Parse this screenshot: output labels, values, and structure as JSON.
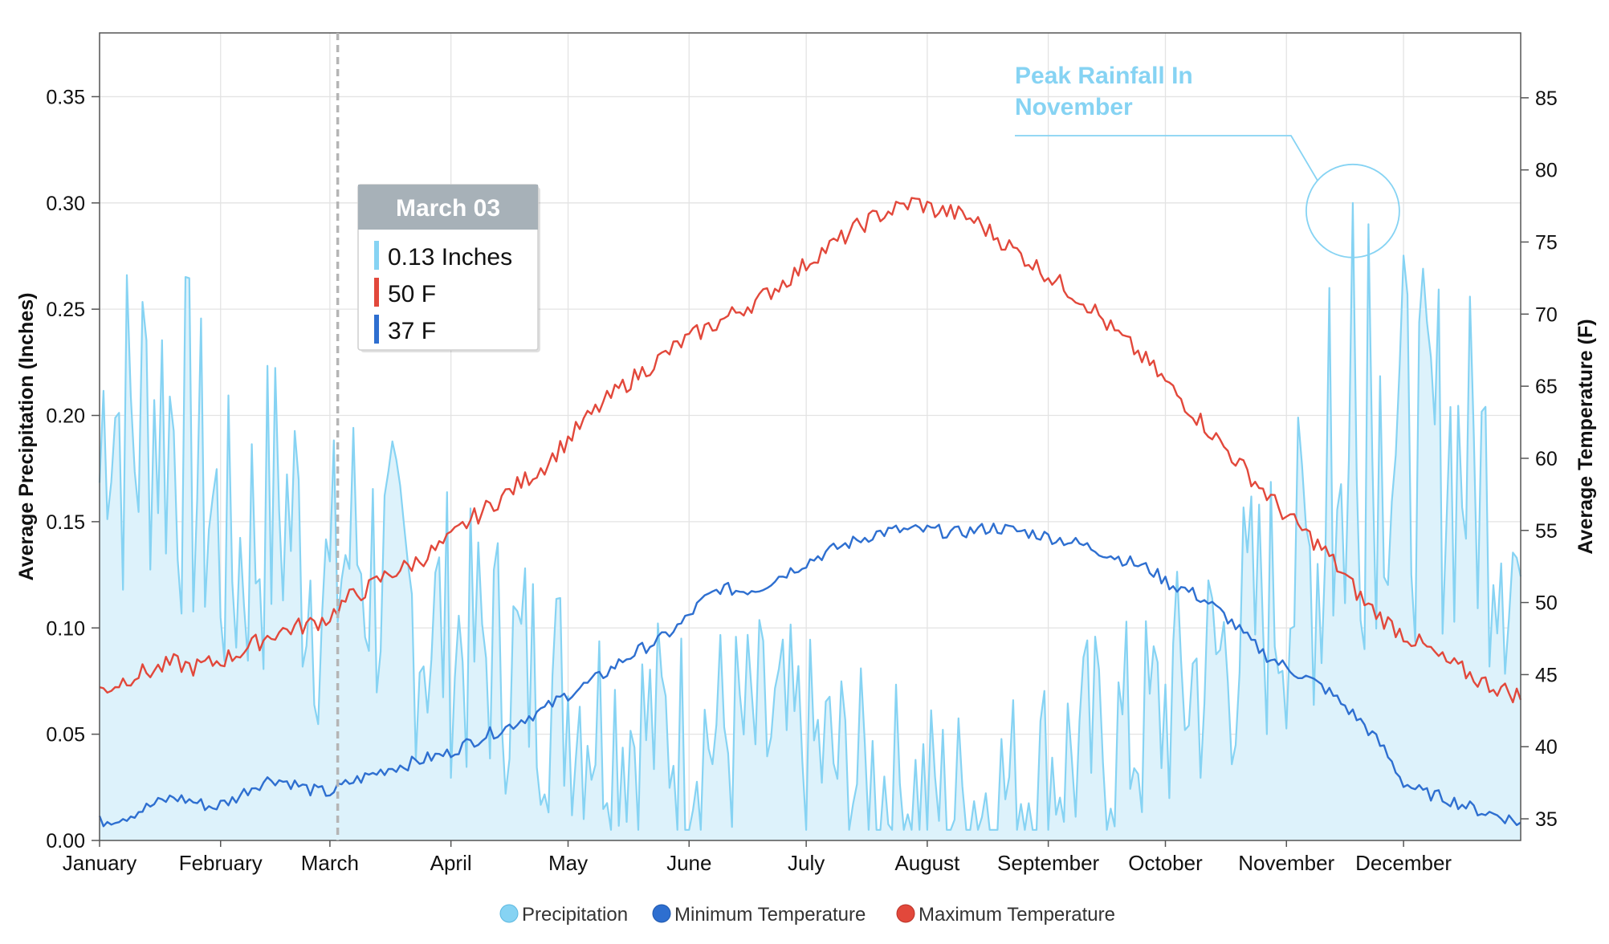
{
  "chart_data": {
    "type": "line",
    "title": "",
    "xlabel": "",
    "ylabel_left": "Average Precipitation (Inches)",
    "ylabel_right": "Average Temperature (F)",
    "ylim_left": [
      0,
      0.38
    ],
    "ylim_right": [
      33.5,
      89.5
    ],
    "yticks_left": [
      "0.00",
      "0.05",
      "0.10",
      "0.15",
      "0.20",
      "0.25",
      "0.30",
      "0.35"
    ],
    "yticks_right": [
      "35",
      "40",
      "45",
      "50",
      "55",
      "60",
      "65",
      "70",
      "75",
      "80",
      "85"
    ],
    "months": [
      "January",
      "February",
      "March",
      "April",
      "May",
      "June",
      "July",
      "August",
      "September",
      "October",
      "November",
      "December"
    ],
    "grid": true,
    "legend_position": "bottom-center",
    "colors": {
      "precipitation_line": "#86d3f3",
      "precipitation_fill": "#ddf2fb",
      "min_temp": "#2e6fd0",
      "max_temp": "#e2483b",
      "crosshair": "#b5b5b5",
      "tooltip_header": "#a7b1b8",
      "grid": "#e3e3e3"
    },
    "series": [
      {
        "name": "Precipitation",
        "axis": "left",
        "anchors_day_value": [
          [
            1,
            0.17
          ],
          [
            3,
            0.23
          ],
          [
            6,
            0.2
          ],
          [
            10,
            0.19
          ],
          [
            14,
            0.21
          ],
          [
            18,
            0.2
          ],
          [
            22,
            0.19
          ],
          [
            26,
            0.17
          ],
          [
            29,
            0.16
          ],
          [
            32,
            0.14
          ],
          [
            35,
            0.13
          ],
          [
            39,
            0.14
          ],
          [
            43,
            0.15
          ],
          [
            47,
            0.16
          ],
          [
            51,
            0.15
          ],
          [
            55,
            0.13
          ],
          [
            58,
            0.12
          ],
          [
            60,
            0.11
          ],
          [
            62,
            0.13
          ],
          [
            66,
            0.14
          ],
          [
            70,
            0.13
          ],
          [
            75,
            0.12
          ],
          [
            80,
            0.11
          ],
          [
            85,
            0.1
          ],
          [
            90,
            0.1
          ],
          [
            95,
            0.09
          ],
          [
            100,
            0.09
          ],
          [
            105,
            0.085
          ],
          [
            110,
            0.08
          ],
          [
            115,
            0.075
          ],
          [
            120,
            0.07
          ],
          [
            125,
            0.063
          ],
          [
            130,
            0.058
          ],
          [
            135,
            0.055
          ],
          [
            140,
            0.053
          ],
          [
            145,
            0.052
          ],
          [
            150,
            0.051
          ],
          [
            155,
            0.05
          ],
          [
            160,
            0.05
          ],
          [
            165,
            0.05
          ],
          [
            170,
            0.05
          ],
          [
            175,
            0.048
          ],
          [
            180,
            0.045
          ],
          [
            185,
            0.04
          ],
          [
            190,
            0.035
          ],
          [
            195,
            0.03
          ],
          [
            200,
            0.028
          ],
          [
            205,
            0.026
          ],
          [
            210,
            0.022
          ],
          [
            215,
            0.02
          ],
          [
            220,
            0.018
          ],
          [
            225,
            0.02
          ],
          [
            230,
            0.022
          ],
          [
            235,
            0.025
          ],
          [
            240,
            0.03
          ],
          [
            245,
            0.035
          ],
          [
            250,
            0.04
          ],
          [
            255,
            0.045
          ],
          [
            260,
            0.048
          ],
          [
            265,
            0.05
          ],
          [
            270,
            0.055
          ],
          [
            275,
            0.065
          ],
          [
            280,
            0.075
          ],
          [
            285,
            0.08
          ],
          [
            290,
            0.09
          ],
          [
            295,
            0.1
          ],
          [
            300,
            0.11
          ],
          [
            305,
            0.12
          ],
          [
            310,
            0.13
          ],
          [
            315,
            0.14
          ],
          [
            320,
            0.16
          ],
          [
            325,
            0.18
          ],
          [
            330,
            0.2
          ],
          [
            335,
            0.19
          ],
          [
            340,
            0.18
          ],
          [
            345,
            0.185
          ],
          [
            350,
            0.18
          ],
          [
            355,
            0.17
          ],
          [
            360,
            0.16
          ],
          [
            365,
            0.12
          ]
        ],
        "peak": {
          "day": 322,
          "value": 0.3
        }
      },
      {
        "name": "Minimum Temperature",
        "axis": "right",
        "anchors_day_value": [
          [
            1,
            34.8
          ],
          [
            8,
            35.2
          ],
          [
            15,
            36.0
          ],
          [
            20,
            36.5
          ],
          [
            25,
            36.2
          ],
          [
            30,
            35.8
          ],
          [
            35,
            36.3
          ],
          [
            40,
            37.2
          ],
          [
            45,
            37.8
          ],
          [
            50,
            37.5
          ],
          [
            55,
            37.0
          ],
          [
            60,
            36.8
          ],
          [
            65,
            37.5
          ],
          [
            70,
            38.0
          ],
          [
            75,
            38.5
          ],
          [
            80,
            38.8
          ],
          [
            85,
            39.2
          ],
          [
            90,
            39.5
          ],
          [
            95,
            40.2
          ],
          [
            100,
            40.8
          ],
          [
            105,
            41.3
          ],
          [
            110,
            42.0
          ],
          [
            115,
            42.6
          ],
          [
            120,
            43.5
          ],
          [
            125,
            44.2
          ],
          [
            130,
            45.0
          ],
          [
            135,
            46.0
          ],
          [
            140,
            46.8
          ],
          [
            145,
            47.5
          ],
          [
            150,
            48.5
          ],
          [
            155,
            50.0
          ],
          [
            160,
            51.0
          ],
          [
            165,
            50.8
          ],
          [
            170,
            51.0
          ],
          [
            175,
            51.8
          ],
          [
            180,
            52.5
          ],
          [
            185,
            53.2
          ],
          [
            190,
            53.8
          ],
          [
            195,
            54.3
          ],
          [
            200,
            54.8
          ],
          [
            205,
            55.0
          ],
          [
            210,
            55.0
          ],
          [
            215,
            55.0
          ],
          [
            220,
            54.8
          ],
          [
            225,
            55.0
          ],
          [
            230,
            55.2
          ],
          [
            235,
            55.0
          ],
          [
            240,
            54.8
          ],
          [
            245,
            54.5
          ],
          [
            250,
            54.2
          ],
          [
            255,
            53.8
          ],
          [
            260,
            53.3
          ],
          [
            265,
            52.8
          ],
          [
            270,
            52.3
          ],
          [
            275,
            51.3
          ],
          [
            280,
            50.8
          ],
          [
            285,
            50.0
          ],
          [
            290,
            48.9
          ],
          [
            295,
            47.5
          ],
          [
            300,
            46.3
          ],
          [
            305,
            45.5
          ],
          [
            310,
            44.8
          ],
          [
            315,
            44.0
          ],
          [
            320,
            42.8
          ],
          [
            325,
            41.5
          ],
          [
            330,
            39.8
          ],
          [
            335,
            37.5
          ],
          [
            340,
            36.8
          ],
          [
            345,
            36.5
          ],
          [
            350,
            36.0
          ],
          [
            355,
            35.5
          ],
          [
            360,
            35.2
          ],
          [
            365,
            34.7
          ]
        ]
      },
      {
        "name": "Maximum Temperature",
        "axis": "right",
        "anchors_day_value": [
          [
            1,
            43.9
          ],
          [
            5,
            44.3
          ],
          [
            10,
            45.0
          ],
          [
            15,
            45.3
          ],
          [
            20,
            45.8
          ],
          [
            25,
            45.5
          ],
          [
            30,
            45.8
          ],
          [
            35,
            46.3
          ],
          [
            40,
            47.0
          ],
          [
            45,
            47.8
          ],
          [
            50,
            48.2
          ],
          [
            55,
            48.5
          ],
          [
            60,
            49.0
          ],
          [
            62,
            49.6
          ],
          [
            65,
            50.3
          ],
          [
            70,
            51.0
          ],
          [
            75,
            52.0
          ],
          [
            80,
            52.5
          ],
          [
            85,
            53.3
          ],
          [
            90,
            54.2
          ],
          [
            95,
            55.5
          ],
          [
            100,
            56.5
          ],
          [
            105,
            57.5
          ],
          [
            110,
            58.5
          ],
          [
            115,
            59.5
          ],
          [
            120,
            61.0
          ],
          [
            125,
            62.5
          ],
          [
            130,
            63.8
          ],
          [
            135,
            65.0
          ],
          [
            140,
            66.0
          ],
          [
            145,
            67.0
          ],
          [
            150,
            68.0
          ],
          [
            155,
            68.8
          ],
          [
            160,
            69.5
          ],
          [
            165,
            70.3
          ],
          [
            170,
            71.0
          ],
          [
            175,
            72.0
          ],
          [
            180,
            73.0
          ],
          [
            185,
            74.2
          ],
          [
            190,
            75.0
          ],
          [
            195,
            76.0
          ],
          [
            200,
            76.8
          ],
          [
            205,
            77.3
          ],
          [
            210,
            77.8
          ],
          [
            215,
            77.2
          ],
          [
            220,
            77.0
          ],
          [
            225,
            76.5
          ],
          [
            230,
            75.5
          ],
          [
            235,
            74.5
          ],
          [
            240,
            73.5
          ],
          [
            245,
            72.5
          ],
          [
            250,
            71.5
          ],
          [
            255,
            70.5
          ],
          [
            260,
            69.0
          ],
          [
            265,
            67.8
          ],
          [
            270,
            66.5
          ],
          [
            275,
            65.0
          ],
          [
            280,
            63.5
          ],
          [
            285,
            62.0
          ],
          [
            290,
            60.5
          ],
          [
            295,
            59.0
          ],
          [
            300,
            57.5
          ],
          [
            305,
            56.0
          ],
          [
            310,
            54.8
          ],
          [
            315,
            53.5
          ],
          [
            320,
            51.8
          ],
          [
            325,
            50.0
          ],
          [
            330,
            48.8
          ],
          [
            335,
            47.8
          ],
          [
            340,
            47.0
          ],
          [
            345,
            46.0
          ],
          [
            350,
            45.3
          ],
          [
            355,
            44.5
          ],
          [
            360,
            44.0
          ],
          [
            365,
            43.5
          ]
        ]
      }
    ],
    "tooltip": {
      "title": "March 03",
      "day": 62,
      "precip_label": "0.13 Inches",
      "max_label": "50 F",
      "min_label": "37 F"
    },
    "annotation": {
      "line1": "Peak Rainfall In",
      "line2": "November"
    }
  }
}
